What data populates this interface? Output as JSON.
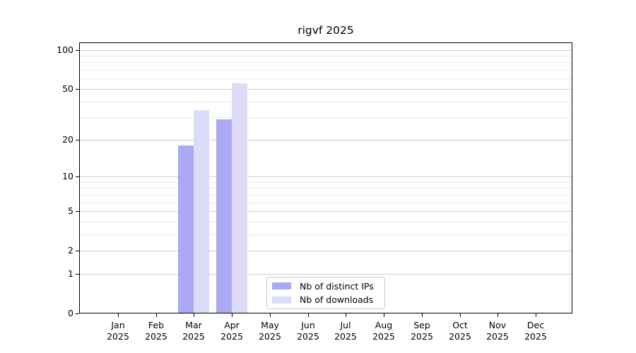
{
  "chart_data": {
    "type": "bar",
    "title": "rigvf 2025",
    "xlabel": "",
    "ylabel": "",
    "categories": [
      "Jan",
      "Feb",
      "Mar",
      "Apr",
      "May",
      "Jun",
      "Jul",
      "Aug",
      "Sep",
      "Oct",
      "Nov",
      "Dec"
    ],
    "category_year": "2025",
    "series": [
      {
        "name": "Nb of distinct IPs",
        "color": "#a9a9f6",
        "values": [
          0,
          0,
          18,
          29,
          0,
          0,
          0,
          0,
          0,
          0,
          0,
          0
        ]
      },
      {
        "name": "Nb of downloads",
        "color": "#dcdcf8",
        "values": [
          0,
          0,
          34,
          55,
          0,
          0,
          0,
          0,
          0,
          0,
          0,
          0
        ]
      }
    ],
    "yscale": "log1p",
    "ylim": [
      0,
      117
    ],
    "yticks": [
      0,
      1,
      2,
      5,
      10,
      20,
      50,
      100
    ],
    "yticks_minor": [
      3,
      4,
      6,
      7,
      8,
      9,
      30,
      40,
      60,
      70,
      80,
      90
    ],
    "grid": "horizontal",
    "legend_position": "lower-center-inside",
    "colors": {
      "grid_major": "#cfcfcf",
      "grid_minor": "#ebebeb",
      "spine": "#000000",
      "background": "#ffffff"
    }
  }
}
